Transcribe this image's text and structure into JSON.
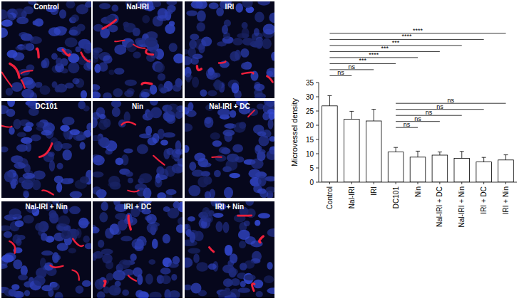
{
  "image_panels": {
    "labels": [
      "Control",
      "Nal-IRI",
      "IRI",
      "DC101",
      "Nin",
      "Nal-IRI + DC",
      "Nal-IRI + Nin",
      "IRI + DC",
      "IRI + Nin"
    ]
  },
  "chart_data": {
    "type": "bar",
    "y_label": "Microvessel density",
    "categories": [
      "Control",
      "Nal-IRI",
      "IRI",
      "DC101",
      "Nin",
      "Nal-IRI + DC",
      "Nal-IRI + Nin",
      "IRI + DC",
      "IRI + Nin"
    ],
    "values": [
      26.8,
      22.1,
      21.5,
      10.6,
      8.8,
      9.5,
      8.4,
      7.1,
      7.8
    ],
    "errors": [
      3.6,
      2.8,
      4.1,
      1.6,
      2.1,
      1.1,
      2.4,
      1.6,
      1.8
    ],
    "color": "#ffffff",
    "ylim": [
      0,
      35
    ],
    "yticks": [
      0,
      5,
      10,
      15,
      20,
      25,
      30,
      35
    ],
    "comparisons": [
      {
        "from": 0,
        "to": 8,
        "label": "****"
      },
      {
        "from": 0,
        "to": 7,
        "label": "****"
      },
      {
        "from": 0,
        "to": 6,
        "label": "***"
      },
      {
        "from": 0,
        "to": 5,
        "label": "***"
      },
      {
        "from": 0,
        "to": 4,
        "label": "****"
      },
      {
        "from": 0,
        "to": 3,
        "label": "***"
      },
      {
        "from": 0,
        "to": 2,
        "label": "ns"
      },
      {
        "from": 0,
        "to": 1,
        "label": "ns"
      },
      {
        "from": 3,
        "to": 8,
        "label": "ns"
      },
      {
        "from": 3,
        "to": 7,
        "label": "ns"
      },
      {
        "from": 3,
        "to": 6,
        "label": "ns"
      },
      {
        "from": 3,
        "to": 5,
        "label": "ns"
      },
      {
        "from": 3,
        "to": 4,
        "label": "ns"
      }
    ]
  }
}
